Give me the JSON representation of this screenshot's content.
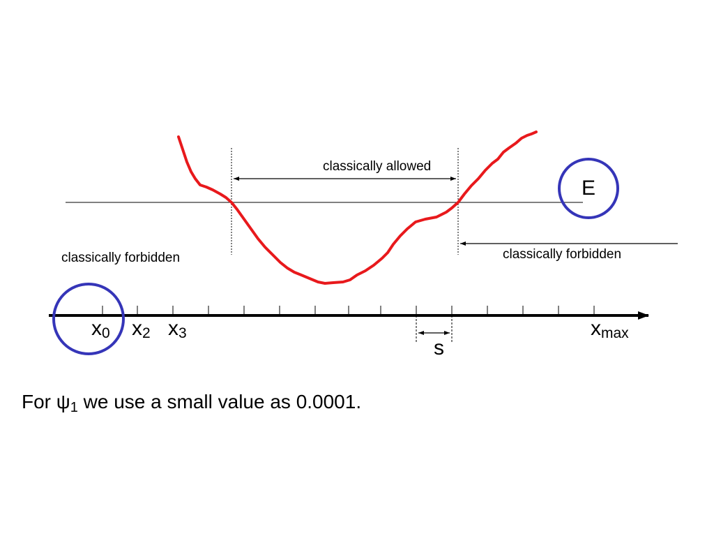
{
  "labels": {
    "allowed": "classically allowed",
    "forbidden_left": "classically forbidden",
    "forbidden_right": "classically forbidden",
    "energy": "E",
    "x0_main": "x",
    "x0_sub": "0",
    "x2_main": "x",
    "x2_sub": "2",
    "x3_main": "x",
    "x3_sub": "3",
    "xmax_main": "x",
    "xmax_sub": "max",
    "step": "s"
  },
  "caption": {
    "before": "For ",
    "psi": "ψ",
    "psi_sub": "1",
    "after": " we use a small value as 0.0001."
  },
  "colors": {
    "potential_curve": "#e8191c",
    "highlight_circle": "#3535b8",
    "lines": "#000000"
  }
}
